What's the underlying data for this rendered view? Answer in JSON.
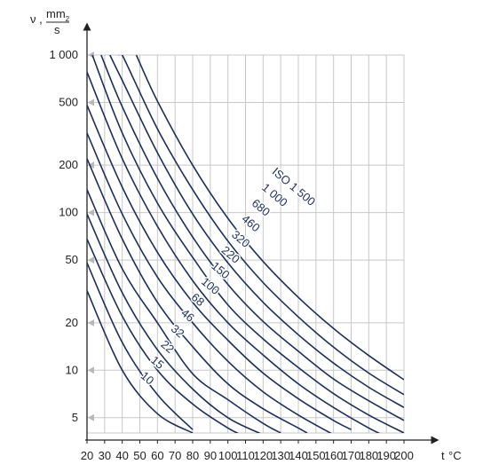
{
  "chart_data": {
    "type": "line",
    "xlabel": "t °C",
    "ylabel": "ν , mm2 / s",
    "ylabel_parts": {
      "symbol": "ν",
      "sep": ",",
      "numerator": "mm",
      "exponent": "2",
      "denominator": "s"
    },
    "xlabel_parts": {
      "t": "t",
      "unit": "°C"
    },
    "x_scale": "linear",
    "y_scale": "log",
    "xlim": [
      20,
      200
    ],
    "ylim": [
      4,
      1000
    ],
    "grid": true,
    "xticks": [
      20,
      30,
      40,
      50,
      60,
      70,
      80,
      90,
      100,
      110,
      120,
      130,
      140,
      150,
      160,
      170,
      180,
      190,
      200
    ],
    "xtick_labels": [
      "20",
      "30",
      "40",
      "50",
      "60",
      "70",
      "80",
      "90",
      "100",
      "110",
      "120",
      "130",
      "140",
      "150",
      "160",
      "170",
      "180",
      "190",
      "200"
    ],
    "yticks": [
      5,
      10,
      20,
      50,
      100,
      200,
      500,
      1000
    ],
    "ytick_labels": [
      "5",
      "10",
      "20",
      "50",
      "100",
      "200",
      "500",
      "1 000"
    ],
    "series_color": "#1c2e5c",
    "grid_color": "#c8c8c8",
    "series": [
      {
        "name": "10",
        "points": [
          [
            20,
            32
          ],
          [
            40,
            10
          ],
          [
            60,
            5.3
          ],
          [
            80,
            4
          ]
        ]
      },
      {
        "name": "15",
        "points": [
          [
            20,
            48
          ],
          [
            40,
            15
          ],
          [
            60,
            7
          ],
          [
            80,
            4.2
          ]
        ]
      },
      {
        "name": "22",
        "points": [
          [
            20,
            68
          ],
          [
            40,
            22
          ],
          [
            60,
            10
          ],
          [
            80,
            6.1
          ],
          [
            100,
            4.3
          ],
          [
            110,
            3.8
          ]
        ]
      },
      {
        "name": "32",
        "points": [
          [
            20,
            98
          ],
          [
            40,
            31
          ],
          [
            60,
            13.5
          ],
          [
            80,
            7.6
          ],
          [
            100,
            5
          ],
          [
            120,
            3.9
          ]
        ]
      },
      {
        "name": "46",
        "points": [
          [
            20,
            140
          ],
          [
            40,
            44
          ],
          [
            60,
            20
          ],
          [
            80,
            9.5
          ],
          [
            100,
            6.5
          ],
          [
            120,
            4.6
          ],
          [
            130,
            4
          ]
        ]
      },
      {
        "name": "68",
        "points": [
          [
            20,
            220
          ],
          [
            40,
            68
          ],
          [
            60,
            27
          ],
          [
            80,
            14.1
          ],
          [
            100,
            8.2
          ],
          [
            120,
            5.7
          ],
          [
            140,
            4.3
          ],
          [
            145,
            4
          ]
        ]
      },
      {
        "name": "100",
        "points": [
          [
            20,
            320
          ],
          [
            40,
            98
          ],
          [
            60,
            39
          ],
          [
            80,
            20
          ],
          [
            100,
            11.4
          ],
          [
            120,
            7.3
          ],
          [
            140,
            5.2
          ],
          [
            160,
            3.9
          ]
        ]
      },
      {
        "name": "150",
        "points": [
          [
            20,
            480
          ],
          [
            40,
            145
          ],
          [
            60,
            56
          ],
          [
            80,
            27
          ],
          [
            100,
            15.5
          ],
          [
            120,
            9.6
          ],
          [
            140,
            6.6
          ],
          [
            160,
            4.8
          ],
          [
            170,
            4.2
          ]
        ]
      },
      {
        "name": "220",
        "points": [
          [
            20,
            780
          ],
          [
            40,
            220
          ],
          [
            60,
            82
          ],
          [
            80,
            37
          ],
          [
            100,
            20
          ],
          [
            120,
            12.5
          ],
          [
            140,
            8.2
          ],
          [
            160,
            5.8
          ],
          [
            180,
            4.3
          ],
          [
            190,
            3.8
          ]
        ]
      },
      {
        "name": "320",
        "points": [
          [
            23,
            1000
          ],
          [
            40,
            320
          ],
          [
            60,
            115
          ],
          [
            80,
            52
          ],
          [
            100,
            26
          ],
          [
            120,
            15.8
          ],
          [
            140,
            10.4
          ],
          [
            160,
            7.1
          ],
          [
            180,
            5.2
          ],
          [
            200,
            4
          ]
        ]
      },
      {
        "name": "460",
        "points": [
          [
            28,
            1000
          ],
          [
            40,
            470
          ],
          [
            60,
            165
          ],
          [
            80,
            70
          ],
          [
            100,
            35
          ],
          [
            120,
            20.4
          ],
          [
            140,
            13.2
          ],
          [
            160,
            8.8
          ],
          [
            180,
            6.4
          ],
          [
            200,
            4.8
          ]
        ]
      },
      {
        "name": "680",
        "points": [
          [
            33,
            1000
          ],
          [
            40,
            690
          ],
          [
            60,
            240
          ],
          [
            80,
            98
          ],
          [
            100,
            48
          ],
          [
            120,
            27
          ],
          [
            140,
            16.8
          ],
          [
            160,
            11.1
          ],
          [
            180,
            7.8
          ],
          [
            200,
            5.8
          ]
        ]
      },
      {
        "name": "1 000",
        "points": [
          [
            38,
            1000
          ],
          [
            40,
            1000
          ],
          [
            60,
            340
          ],
          [
            80,
            140
          ],
          [
            100,
            66
          ],
          [
            120,
            36
          ],
          [
            140,
            21.8
          ],
          [
            160,
            14
          ],
          [
            180,
            9.6
          ],
          [
            200,
            7
          ]
        ]
      },
      {
        "name": "ISO 1 500",
        "points": [
          [
            48,
            1000
          ],
          [
            60,
            510
          ],
          [
            80,
            200
          ],
          [
            100,
            92
          ],
          [
            120,
            49
          ],
          [
            140,
            29
          ],
          [
            160,
            18.4
          ],
          [
            180,
            12.4
          ],
          [
            200,
            8.7
          ]
        ]
      }
    ]
  }
}
